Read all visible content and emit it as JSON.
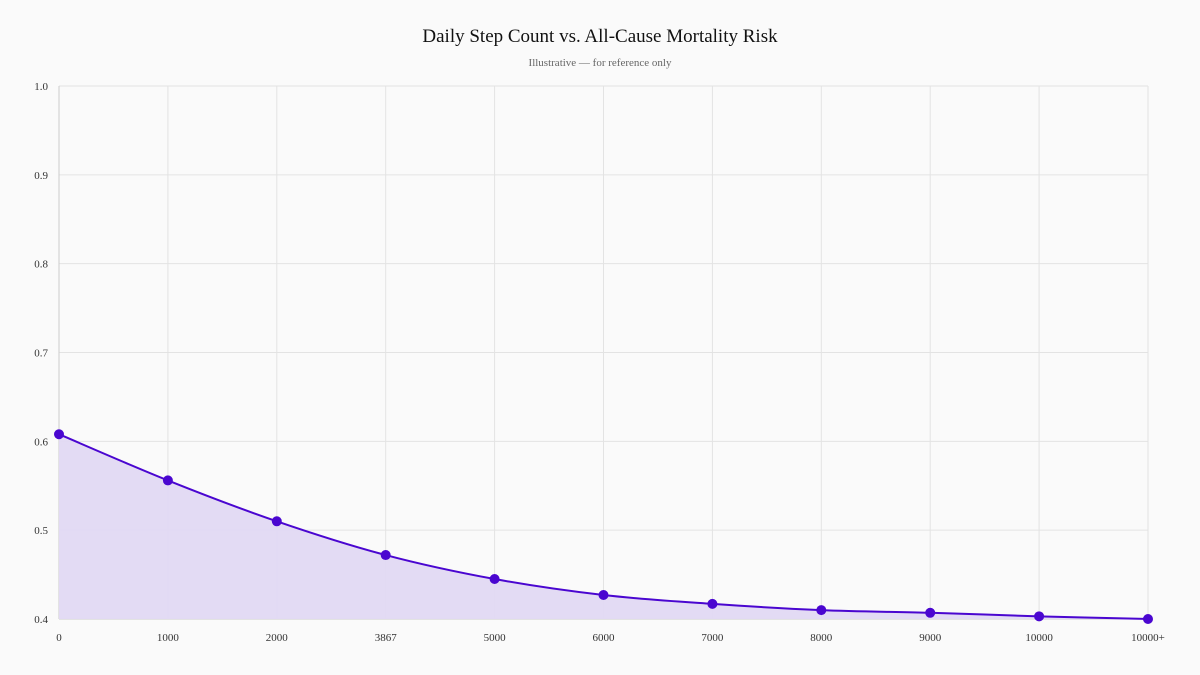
{
  "chart_data": {
    "type": "area",
    "title": "Daily Step Count vs. All-Cause Mortality Risk",
    "subtitle": "Illustrative — for reference only",
    "xlabel": "",
    "ylabel": "",
    "categories": [
      "0",
      "1000",
      "2000",
      "3867",
      "5000",
      "6000",
      "7000",
      "8000",
      "9000",
      "10000",
      "10000+"
    ],
    "values": [
      0.608,
      0.556,
      0.51,
      0.472,
      0.445,
      0.427,
      0.417,
      0.41,
      0.407,
      0.403,
      0.4
    ],
    "ylim": [
      0.4,
      1.0
    ],
    "yticks": [
      "0.4",
      "0.5",
      "0.6",
      "0.7",
      "0.8",
      "0.9",
      "1.0"
    ],
    "grid": true,
    "legend": "none",
    "colors": {
      "line": "#4a06d0",
      "fill": "#e2d9f3",
      "grid": "#e3e3e3"
    }
  }
}
